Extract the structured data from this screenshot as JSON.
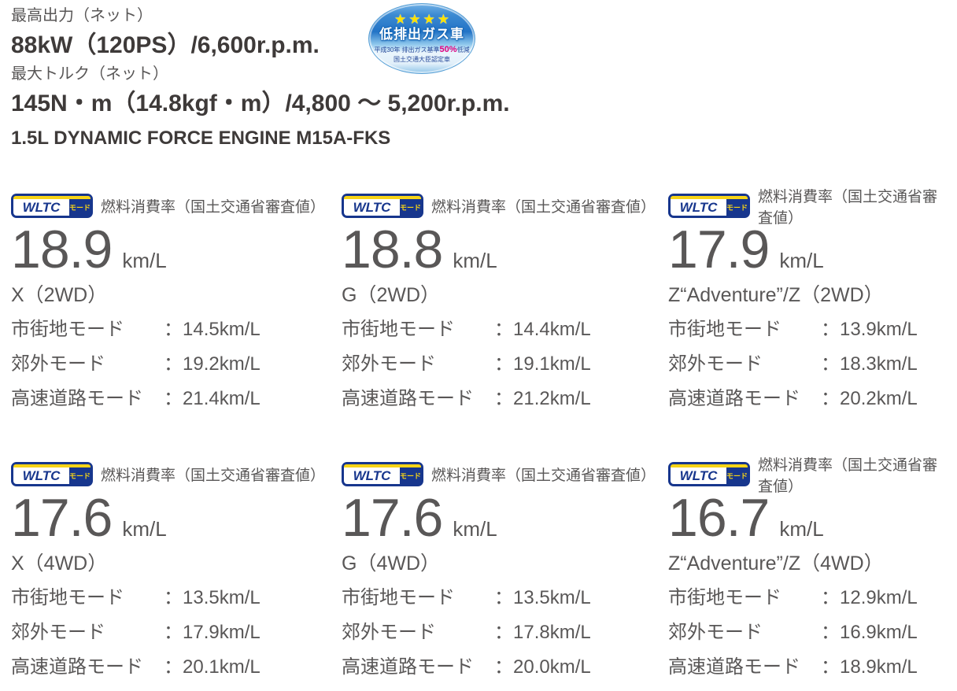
{
  "colors": {
    "text_gray": "#595757",
    "text_dark": "#3e3a39",
    "wltc_blue": "#17368d",
    "wltc_yellow": "#f7d417",
    "badge_highlight_magenta": "#e4007f",
    "badge_star_yellow": "#ffe200"
  },
  "engine": {
    "max_output_label": "最高出力（ネット）",
    "max_output_value": "88kW（120PS）/6,600r.p.m.",
    "max_torque_label": "最大トルク（ネット）",
    "max_torque_value": "145N・m（14.8kgf・m）/4,800 ～ 5,200r.p.m.",
    "engine_name": "1.5L DYNAMIC FORCE ENGINE M15A-FKS"
  },
  "badge": {
    "stars": "★★★★",
    "title": "低排出ガス車",
    "line2_prefix": "平成30年 排出ガス基準",
    "line2_highlight": "50%",
    "line2_suffix": "低減",
    "line3": "国土交通大臣認定車"
  },
  "wltc": {
    "logo_text": "WLTC",
    "logo_mode": "モード",
    "label": "燃料消費率（国土交通省審査値）",
    "unit": "km/L",
    "mode_labels": [
      "市街地モード",
      "郊外モード",
      "高速道路モード"
    ]
  },
  "cards": [
    {
      "value": "18.9",
      "grade": "X（2WD）",
      "mode_values": [
        "：14.5km/L",
        "：19.2km/L",
        "：21.4km/L"
      ]
    },
    {
      "value": "18.8",
      "grade": "G（2WD）",
      "mode_values": [
        "：14.4km/L",
        "：19.1km/L",
        "：21.2km/L"
      ]
    },
    {
      "value": "17.9",
      "grade": "Z“Adventure”/Z（2WD）",
      "mode_values": [
        "：13.9km/L",
        "：18.3km/L",
        "：20.2km/L"
      ]
    },
    {
      "value": "17.6",
      "grade": "X（4WD）",
      "mode_values": [
        "：13.5km/L",
        "：17.9km/L",
        "：20.1km/L"
      ]
    },
    {
      "value": "17.6",
      "grade": "G（4WD）",
      "mode_values": [
        "：13.5km/L",
        "：17.8km/L",
        "：20.0km/L"
      ]
    },
    {
      "value": "16.7",
      "grade": "Z“Adventure”/Z（4WD）",
      "mode_values": [
        "：12.9km/L",
        "：16.9km/L",
        "：18.9km/L"
      ]
    }
  ]
}
